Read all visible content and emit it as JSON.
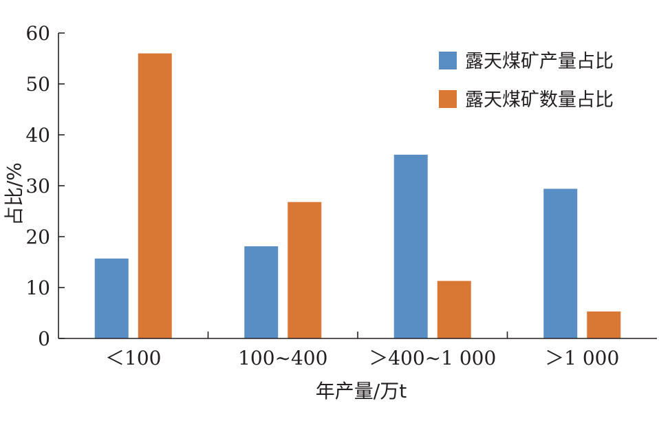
{
  "chart_data": {
    "type": "bar",
    "categories": [
      "＜100",
      "100~400",
      "＞400~1 000",
      "＞1 000"
    ],
    "series": [
      {
        "name": "露天煤矿产量占比",
        "color": "#588ec4",
        "values": [
          15.7,
          18.1,
          36.1,
          29.4
        ]
      },
      {
        "name": "露天煤矿数量占比",
        "color": "#d97735",
        "values": [
          56.0,
          26.8,
          11.3,
          5.3
        ]
      }
    ],
    "xlabel": "年产量/万t",
    "ylabel": "占比/%",
    "ylim": [
      0,
      60
    ],
    "yticks": [
      0,
      10,
      20,
      30,
      40,
      50,
      60
    ],
    "grid": false,
    "legend": "top-right"
  }
}
